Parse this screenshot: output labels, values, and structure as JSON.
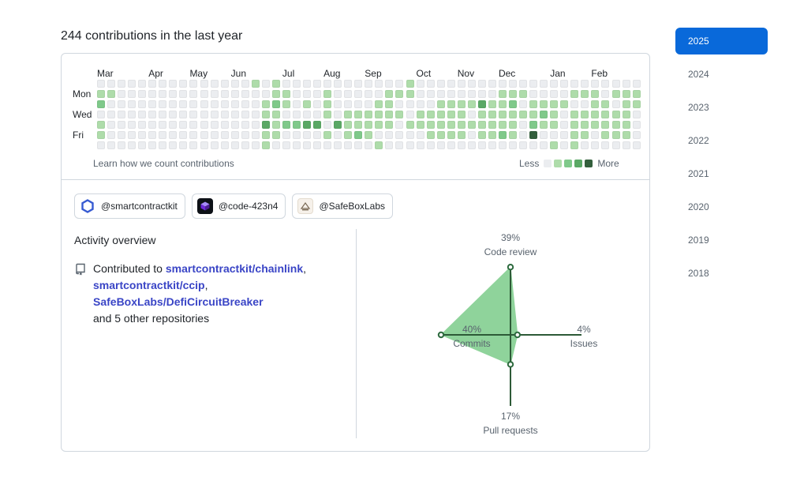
{
  "header": {
    "title": "244 contributions in the last year"
  },
  "calendar": {
    "months": [
      {
        "label": "Mar",
        "col": 0
      },
      {
        "label": "Apr",
        "col": 5
      },
      {
        "label": "May",
        "col": 9
      },
      {
        "label": "Jun",
        "col": 13
      },
      {
        "label": "Jul",
        "col": 18
      },
      {
        "label": "Aug",
        "col": 22
      },
      {
        "label": "Sep",
        "col": 26
      },
      {
        "label": "Oct",
        "col": 31
      },
      {
        "label": "Nov",
        "col": 35
      },
      {
        "label": "Dec",
        "col": 39
      },
      {
        "label": "Jan",
        "col": 44
      },
      {
        "label": "Feb",
        "col": 48
      }
    ],
    "days": [
      {
        "label": "Mon",
        "row": 1
      },
      {
        "label": "Wed",
        "row": 3
      },
      {
        "label": "Fri",
        "row": 5
      }
    ],
    "weeks": 54,
    "level_colors": [
      "#ebedf0",
      "#9be9a8",
      "#40c463",
      "#30a14e",
      "#216e39"
    ],
    "display_colors": [
      "#ebedf0",
      "#aedcaa",
      "#7fc98a",
      "#5aa865",
      "#335f3c"
    ],
    "grid": [
      "00000000000000010100000000000010000000000000000000000",
      "11000000000000000110001000001110000000011100001110111",
      "20000000000000001210101000011000011113112011110011011",
      "00000000000000001100001011111101111101111112101111110",
      "10000000000000003122330311111011111111111021101111110",
      "10000000000000001100001012100000111101121040001101110",
      "00000000000000001000000000010000000000000000101000000"
    ],
    "footer": {
      "learn_link": "Learn how we count contributions",
      "less": "Less",
      "more": "More"
    }
  },
  "orgs": [
    {
      "handle": "@smartcontractkit",
      "icon": "chainlink-hexagon-icon"
    },
    {
      "handle": "@code-423n4",
      "icon": "code4rena-cube-icon"
    },
    {
      "handle": "@SafeBoxLabs",
      "icon": "safeboxlabs-logo-icon"
    }
  ],
  "activity": {
    "title": "Activity overview",
    "contributed_prefix": "Contributed to",
    "repos": [
      "smartcontractkit/chainlink",
      "smartcontractkit/ccip",
      "SafeBoxLabs/DefiCircuitBreaker"
    ],
    "others": "and 5 other repositories",
    "colors": {
      "fill": "#8fd39b",
      "stroke": "#2d6a3e",
      "axis": "#2d5a37",
      "link": "#3a45c6"
    },
    "radar": {
      "code_review": {
        "label": "Code review",
        "percent": "39%",
        "value": 39
      },
      "issues": {
        "label": "Issues",
        "percent": "4%",
        "value": 4
      },
      "pull_requests": {
        "label": "Pull requests",
        "percent": "17%",
        "value": 17
      },
      "commits": {
        "label": "Commits",
        "percent": "40%",
        "value": 40
      }
    }
  },
  "years": [
    "2025",
    "2024",
    "2023",
    "2022",
    "2021",
    "2020",
    "2019",
    "2018"
  ],
  "selected_year": "2025"
}
